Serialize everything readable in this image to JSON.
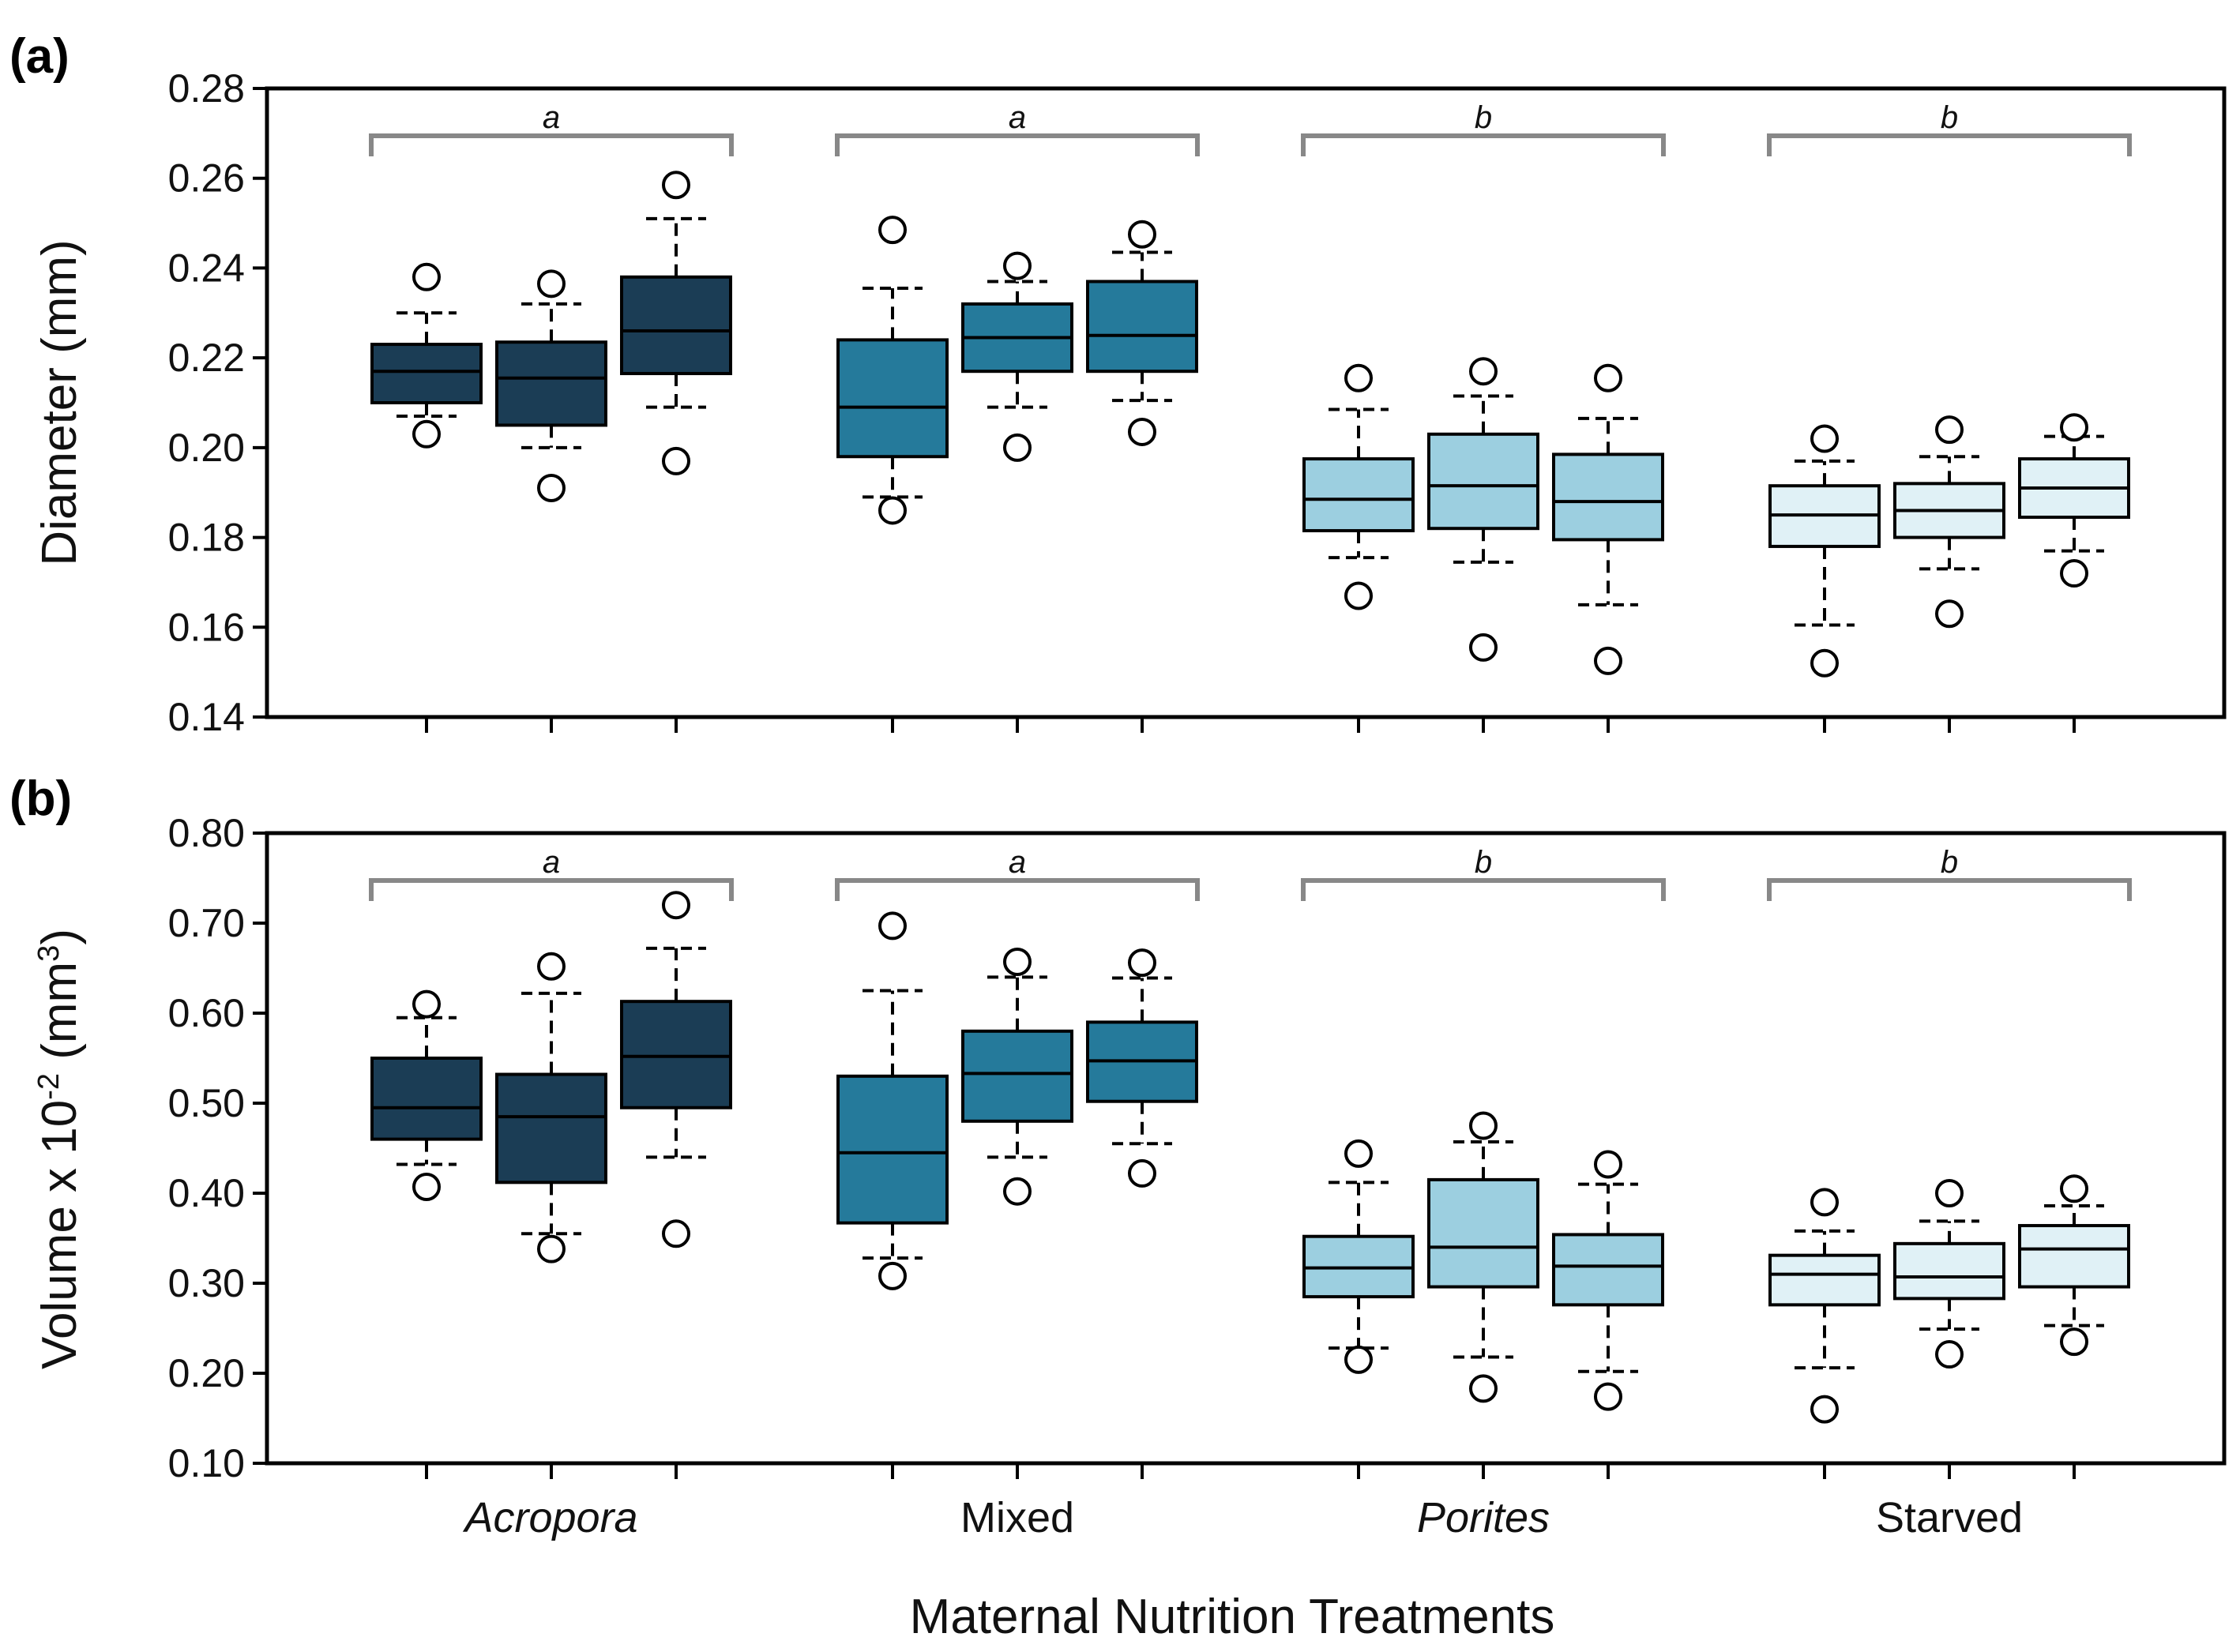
{
  "chart_data": {
    "type": "boxplot",
    "xlabel": "Maternal Nutrition Treatments",
    "groups": [
      {
        "label": "Acropora",
        "italic": true,
        "significance": "a",
        "color": "#1b3d55"
      },
      {
        "label": "Mixed",
        "italic": false,
        "significance": "a",
        "color": "#257a9b"
      },
      {
        "label": "Porites",
        "italic": true,
        "significance": "b",
        "color": "#9ccfe0"
      },
      {
        "label": "Starved",
        "italic": false,
        "significance": "b",
        "color": "#e0f1f6"
      }
    ],
    "panels": [
      {
        "label": "(a)",
        "ylabel": "Diameter (mm)",
        "ylim": [
          0.14,
          0.28
        ],
        "yticks": [
          "0.14",
          "0.16",
          "0.18",
          "0.20",
          "0.22",
          "0.24",
          "0.26",
          "0.28"
        ],
        "boxes": [
          {
            "group": 0,
            "q1": 0.21,
            "median": 0.217,
            "q3": 0.223,
            "whisker_low": 0.207,
            "whisker_high": 0.23,
            "outliers": [
              0.238,
              0.203
            ]
          },
          {
            "group": 0,
            "q1": 0.205,
            "median": 0.2155,
            "q3": 0.2235,
            "whisker_low": 0.2,
            "whisker_high": 0.232,
            "outliers": [
              0.2365,
              0.191
            ]
          },
          {
            "group": 0,
            "q1": 0.2165,
            "median": 0.226,
            "q3": 0.238,
            "whisker_low": 0.209,
            "whisker_high": 0.251,
            "outliers": [
              0.2585,
              0.197
            ]
          },
          {
            "group": 1,
            "q1": 0.198,
            "median": 0.209,
            "q3": 0.224,
            "whisker_low": 0.189,
            "whisker_high": 0.2355,
            "outliers": [
              0.2485,
              0.186
            ]
          },
          {
            "group": 1,
            "q1": 0.217,
            "median": 0.2245,
            "q3": 0.232,
            "whisker_low": 0.209,
            "whisker_high": 0.237,
            "outliers": [
              0.2405,
              0.2
            ]
          },
          {
            "group": 1,
            "q1": 0.217,
            "median": 0.225,
            "q3": 0.237,
            "whisker_low": 0.2105,
            "whisker_high": 0.2435,
            "outliers": [
              0.2475,
              0.2035
            ]
          },
          {
            "group": 2,
            "q1": 0.1815,
            "median": 0.1885,
            "q3": 0.1975,
            "whisker_low": 0.1755,
            "whisker_high": 0.2085,
            "outliers": [
              0.2155,
              0.167
            ]
          },
          {
            "group": 2,
            "q1": 0.182,
            "median": 0.1915,
            "q3": 0.203,
            "whisker_low": 0.1745,
            "whisker_high": 0.2115,
            "outliers": [
              0.217,
              0.1555
            ]
          },
          {
            "group": 2,
            "q1": 0.1795,
            "median": 0.188,
            "q3": 0.1985,
            "whisker_low": 0.165,
            "whisker_high": 0.2065,
            "outliers": [
              0.2155,
              0.1525
            ]
          },
          {
            "group": 3,
            "q1": 0.178,
            "median": 0.185,
            "q3": 0.1915,
            "whisker_low": 0.1605,
            "whisker_high": 0.197,
            "outliers": [
              0.202,
              0.152
            ]
          },
          {
            "group": 3,
            "q1": 0.18,
            "median": 0.186,
            "q3": 0.192,
            "whisker_low": 0.173,
            "whisker_high": 0.198,
            "outliers": [
              0.204,
              0.163
            ]
          },
          {
            "group": 3,
            "q1": 0.1845,
            "median": 0.191,
            "q3": 0.1975,
            "whisker_low": 0.177,
            "whisker_high": 0.2025,
            "outliers": [
              0.2045,
              0.172
            ]
          }
        ]
      },
      {
        "label": "(b)",
        "ylabel_parts": [
          "Volume x 10",
          "-2",
          " (mm",
          "3",
          ")"
        ],
        "ylim": [
          0.1,
          0.8
        ],
        "yticks": [
          "0.10",
          "0.20",
          "0.30",
          "0.40",
          "0.50",
          "0.60",
          "0.70",
          "0.80"
        ],
        "boxes": [
          {
            "group": 0,
            "q1": 0.46,
            "median": 0.495,
            "q3": 0.55,
            "whisker_low": 0.432,
            "whisker_high": 0.595,
            "outliers": [
              0.61,
              0.407
            ]
          },
          {
            "group": 0,
            "q1": 0.412,
            "median": 0.485,
            "q3": 0.532,
            "whisker_low": 0.355,
            "whisker_high": 0.622,
            "outliers": [
              0.652,
              0.338
            ]
          },
          {
            "group": 0,
            "q1": 0.495,
            "median": 0.552,
            "q3": 0.613,
            "whisker_low": 0.44,
            "whisker_high": 0.672,
            "outliers": [
              0.72,
              0.355
            ]
          },
          {
            "group": 1,
            "q1": 0.367,
            "median": 0.445,
            "q3": 0.53,
            "whisker_low": 0.328,
            "whisker_high": 0.625,
            "outliers": [
              0.697,
              0.308
            ]
          },
          {
            "group": 1,
            "q1": 0.48,
            "median": 0.533,
            "q3": 0.58,
            "whisker_low": 0.44,
            "whisker_high": 0.64,
            "outliers": [
              0.657,
              0.402
            ]
          },
          {
            "group": 1,
            "q1": 0.502,
            "median": 0.547,
            "q3": 0.59,
            "whisker_low": 0.455,
            "whisker_high": 0.639,
            "outliers": [
              0.656,
              0.422
            ]
          },
          {
            "group": 2,
            "q1": 0.285,
            "median": 0.317,
            "q3": 0.352,
            "whisker_low": 0.228,
            "whisker_high": 0.412,
            "outliers": [
              0.444,
              0.215
            ]
          },
          {
            "group": 2,
            "q1": 0.296,
            "median": 0.34,
            "q3": 0.415,
            "whisker_low": 0.218,
            "whisker_high": 0.457,
            "outliers": [
              0.475,
              0.183
            ]
          },
          {
            "group": 2,
            "q1": 0.276,
            "median": 0.319,
            "q3": 0.354,
            "whisker_low": 0.202,
            "whisker_high": 0.41,
            "outliers": [
              0.432,
              0.174
            ]
          },
          {
            "group": 3,
            "q1": 0.276,
            "median": 0.31,
            "q3": 0.331,
            "whisker_low": 0.206,
            "whisker_high": 0.358,
            "outliers": [
              0.39,
              0.16
            ]
          },
          {
            "group": 3,
            "q1": 0.283,
            "median": 0.307,
            "q3": 0.344,
            "whisker_low": 0.249,
            "whisker_high": 0.369,
            "outliers": [
              0.4,
              0.221
            ]
          },
          {
            "group": 3,
            "q1": 0.296,
            "median": 0.338,
            "q3": 0.364,
            "whisker_low": 0.253,
            "whisker_high": 0.386,
            "outliers": [
              0.405,
              0.235
            ]
          }
        ]
      }
    ]
  }
}
